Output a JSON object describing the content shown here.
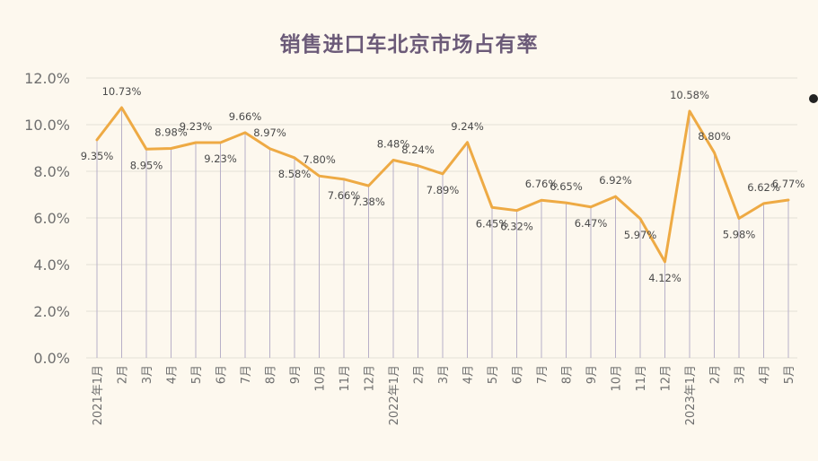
{
  "chart_data": {
    "type": "line",
    "title": "销售进口车北京市场占有率",
    "xlabel": "",
    "ylabel": "",
    "ylim": [
      0,
      12
    ],
    "yticks": [
      "0.0%",
      "2.0%",
      "4.0%",
      "6.0%",
      "8.0%",
      "10.0%",
      "12.0%"
    ],
    "grid": true,
    "legend": "none",
    "colors": {
      "line": "#eeaa44",
      "drop_line": "#b8b0c8",
      "grid": "#e3dfd6",
      "background": "#fdf8ee",
      "title": "#6b5a78"
    },
    "categories": [
      "2021年1月",
      "2月",
      "3月",
      "4月",
      "5月",
      "6月",
      "7月",
      "8月",
      "9月",
      "10月",
      "11月",
      "12月",
      "2022年1月",
      "2月",
      "3月",
      "4月",
      "5月",
      "6月",
      "7月",
      "8月",
      "9月",
      "10月",
      "11月",
      "12月",
      "2023年1月",
      "2月",
      "3月",
      "4月",
      "5月"
    ],
    "series": [
      {
        "values": [
          9.35,
          10.73,
          8.95,
          8.98,
          9.23,
          9.23,
          9.66,
          8.97,
          8.58,
          7.8,
          7.66,
          7.38,
          8.48,
          8.24,
          7.89,
          9.24,
          6.45,
          6.32,
          6.76,
          6.65,
          6.47,
          6.92,
          5.97,
          4.12,
          10.58,
          8.8,
          5.98,
          6.62,
          6.77
        ],
        "labels": [
          "9.35%",
          "10.73%",
          "8.95%",
          "8.98%",
          "9.23%",
          "9.23%",
          "9.66%",
          "8.97%",
          "8.58%",
          "7.80%",
          "7.66%",
          "7.38%",
          "8.48%",
          "8.24%",
          "7.89%",
          "9.24%",
          "6.45%",
          "6.32%",
          "6.76%",
          "6.65%",
          "6.47%",
          "6.92%",
          "5.97%",
          "4.12%",
          "10.58%",
          "8.80%",
          "5.98%",
          "6.62%",
          "6.77%"
        ]
      }
    ]
  }
}
